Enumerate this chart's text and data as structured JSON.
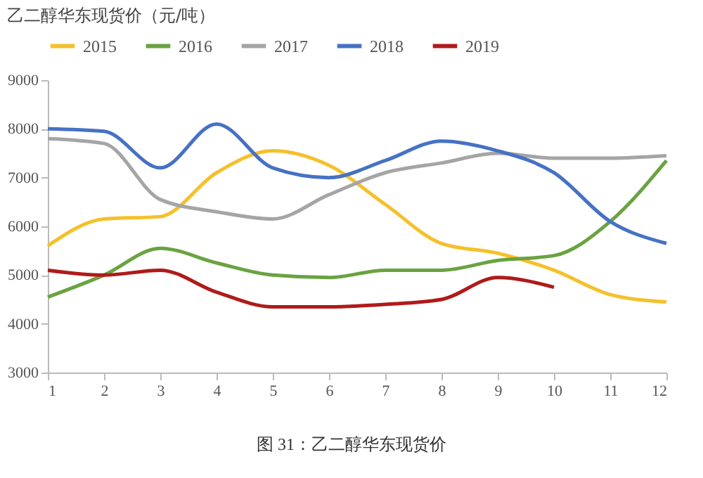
{
  "chart_data": {
    "type": "line",
    "title": "乙二醇华东现货价（元/吨）",
    "x": [
      1,
      2,
      3,
      4,
      5,
      6,
      7,
      8,
      9,
      10,
      11,
      12
    ],
    "series": [
      {
        "name": "2015",
        "color": "#f5c02a",
        "values": [
          5600,
          6150,
          6200,
          7100,
          7550,
          7250,
          6450,
          5650,
          5450,
          5100,
          4600,
          4450
        ]
      },
      {
        "name": "2016",
        "color": "#6aa341",
        "values": [
          4550,
          5000,
          5550,
          5250,
          5000,
          4950,
          5100,
          5100,
          5300,
          5400,
          6100,
          7350
        ]
      },
      {
        "name": "2017",
        "color": "#a5a5a5",
        "values": [
          7800,
          7700,
          6550,
          6300,
          6150,
          6650,
          7100,
          7300,
          7500,
          7400,
          7400,
          7450
        ]
      },
      {
        "name": "2018",
        "color": "#4672c4",
        "values": [
          8000,
          7950,
          7200,
          8100,
          7200,
          7000,
          7350,
          7750,
          7550,
          7100,
          6100,
          5650
        ]
      },
      {
        "name": "2019",
        "color": "#b01a1a",
        "values": [
          5100,
          5000,
          5100,
          4650,
          4350,
          4350,
          4400,
          4500,
          4950,
          4750,
          null,
          null
        ]
      }
    ],
    "xlim": [
      1,
      12
    ],
    "xticks": [
      1,
      2,
      3,
      4,
      5,
      6,
      7,
      8,
      9,
      10,
      11,
      12
    ],
    "ylim": [
      3000,
      9000
    ],
    "yticks": [
      3000,
      4000,
      5000,
      6000,
      7000,
      8000,
      9000
    ],
    "grid": false,
    "legend": "top",
    "marker": "none",
    "line_style": "solid",
    "annotations": [
      "图 31：乙二醇华东现货价"
    ]
  }
}
